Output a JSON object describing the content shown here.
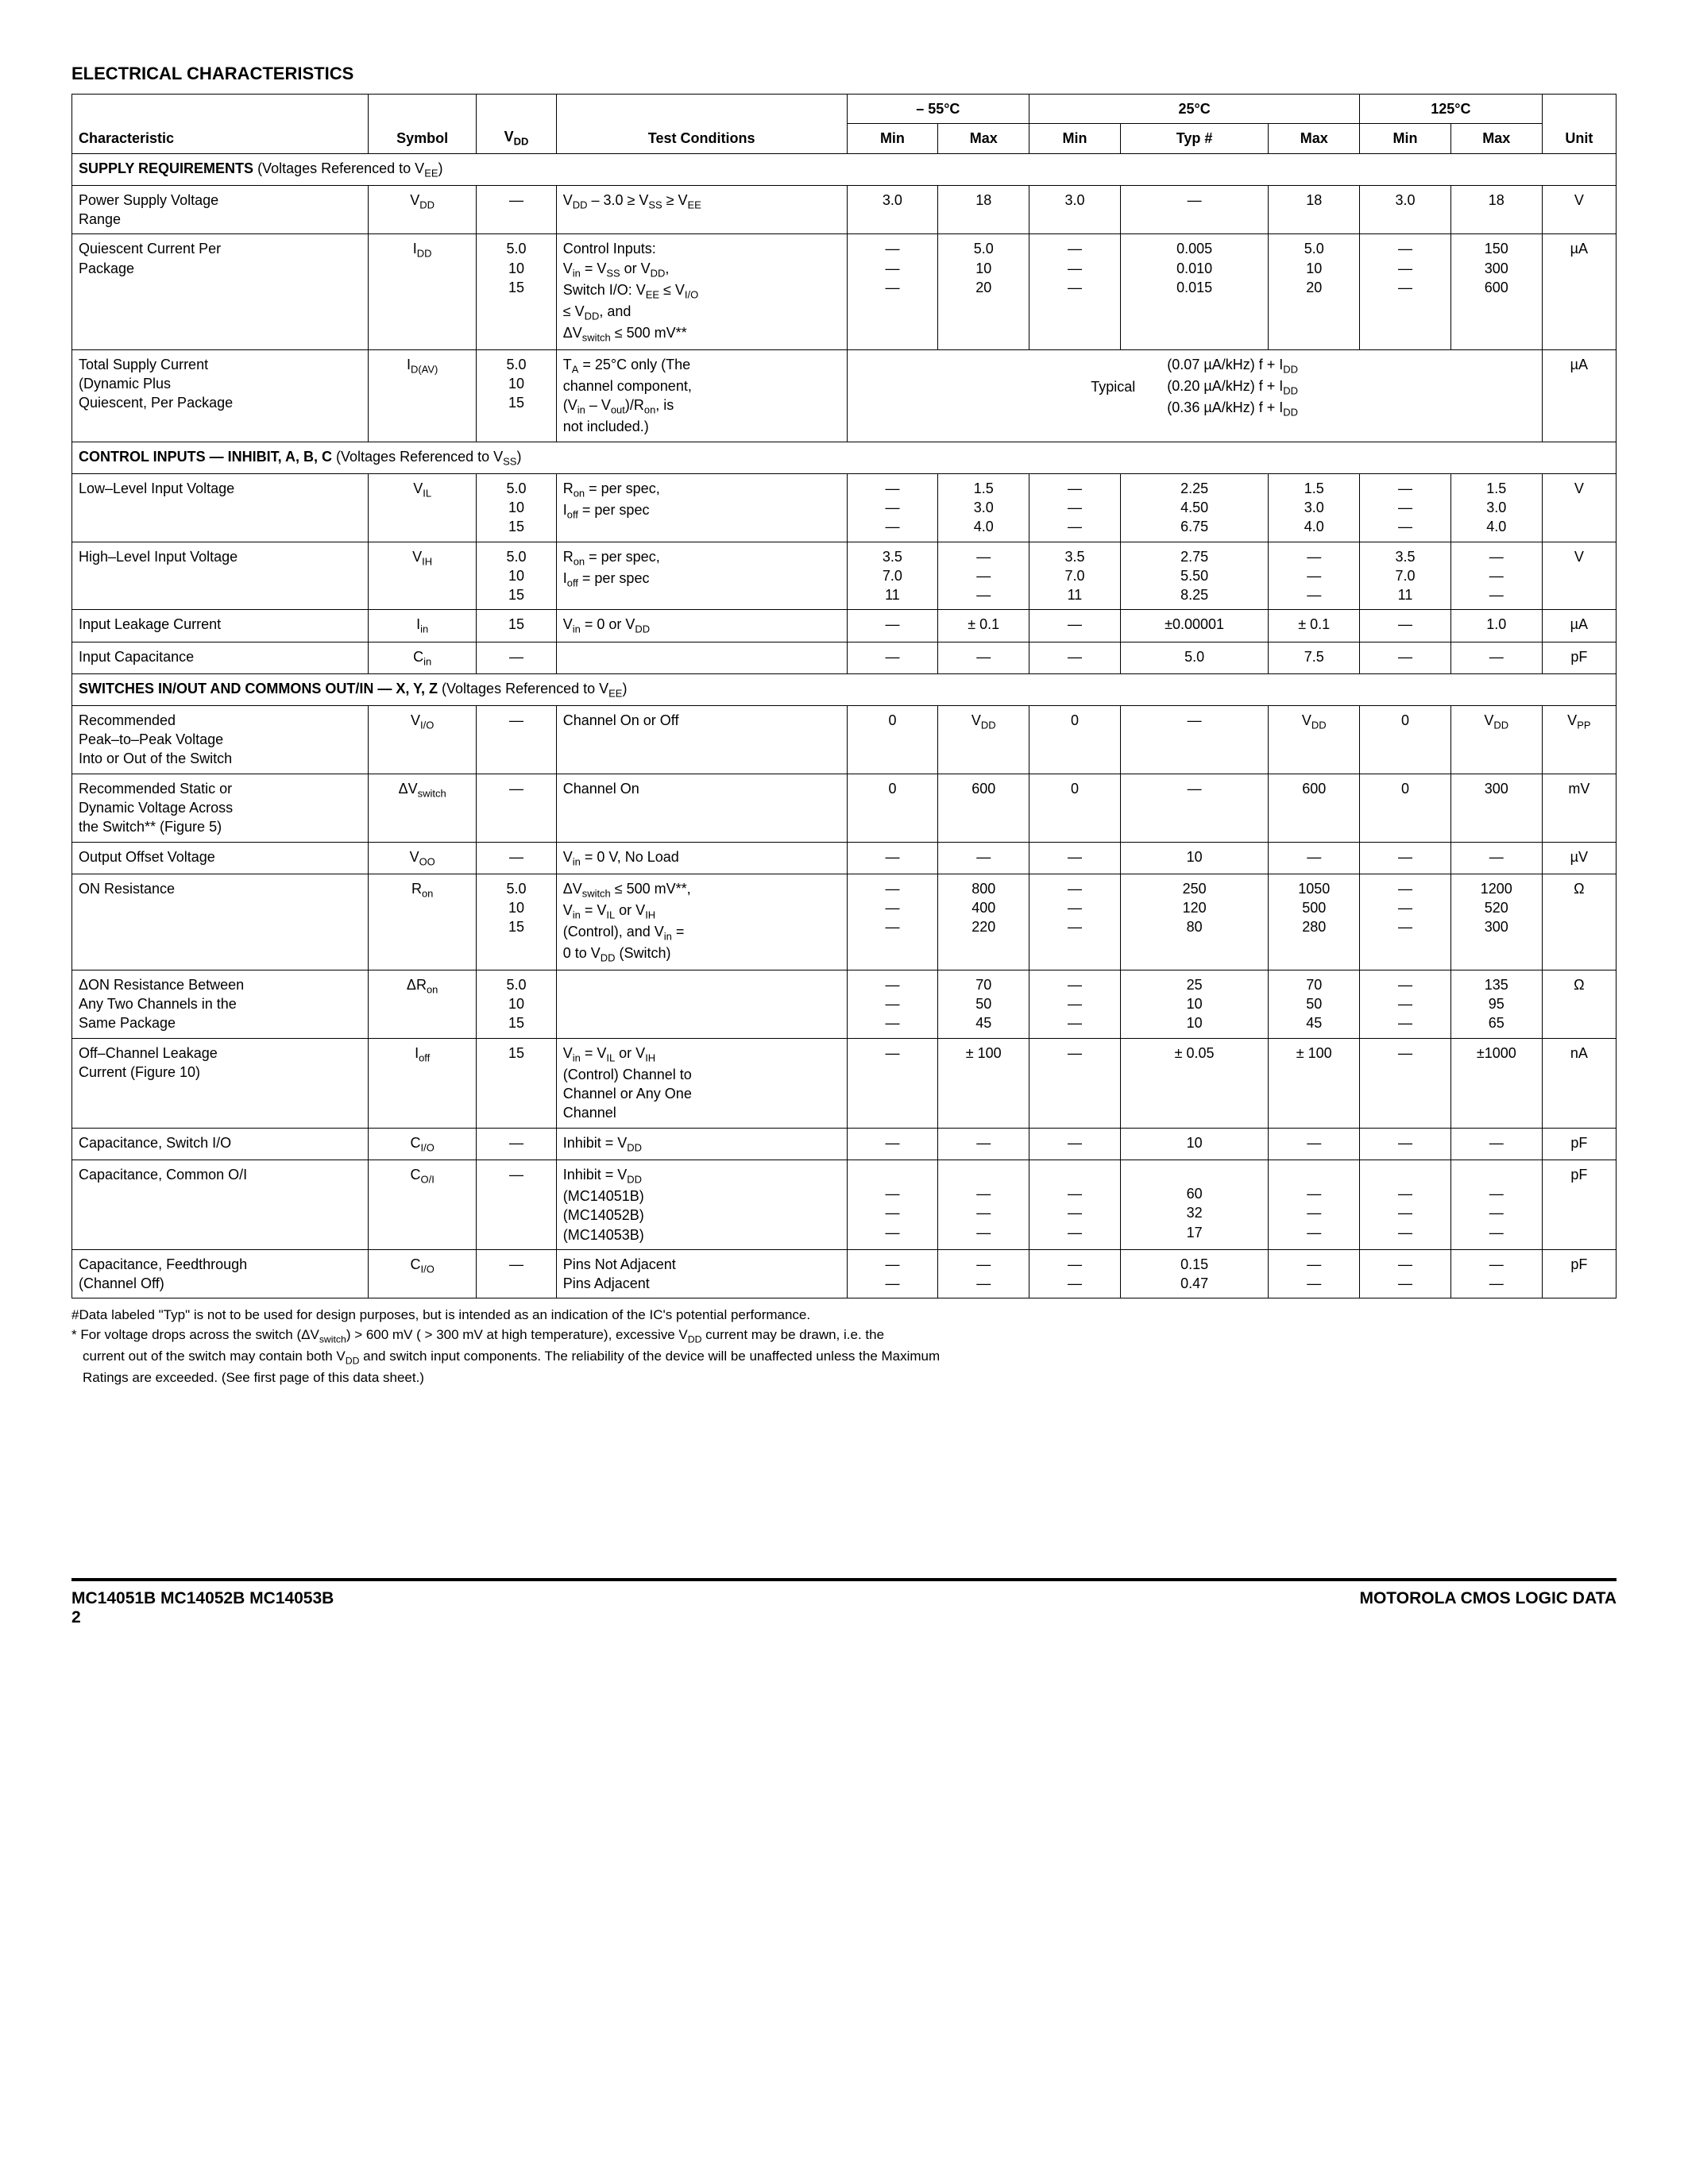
{
  "title": "ELECTRICAL CHARACTERISTICS",
  "temps": {
    "t1": "– 55°C",
    "t2": "25°C",
    "t3": "125°C"
  },
  "head": {
    "char": "Characteristic",
    "sym": "Symbol",
    "vdd": "V",
    "test": "Test Conditions",
    "min": "Min",
    "max": "Max",
    "typ": "Typ #",
    "unit": "Unit"
  },
  "sections": {
    "s1a": "SUPPLY REQUIREMENTS ",
    "s1b": "(Voltages Referenced to V",
    "s1c": ")",
    "s2a": "CONTROL INPUTS — INHIBIT, A, B, C ",
    "s2b": "(Voltages Referenced to V",
    "s2c": ")",
    "s3a": "SWITCHES IN/OUT AND COMMONS OUT/IN — X, Y, Z ",
    "s3b": "(Voltages Referenced to V",
    "s3c": ")"
  },
  "r_psv": {
    "char": "Power Supply Voltage\nRange",
    "sym": "V",
    "sub": "DD",
    "vdd": "—",
    "test": "V<sub>DD</sub> – 3.0 ≥ V<sub>SS</sub> ≥ V<sub>EE</sub>",
    "m55_min": "3.0",
    "m55_max": "18",
    "t25_min": "3.0",
    "t25_typ": "—",
    "t25_max": "18",
    "t125_min": "3.0",
    "t125_max": "18",
    "unit": "V"
  },
  "r_qc": {
    "char": "Quiescent Current Per\nPackage",
    "sym": "I",
    "sub": "DD",
    "vdd": "5.0\n10\n15",
    "test": "Control Inputs:\nV<sub>in</sub> = V<sub>SS</sub> or V<sub>DD</sub>,\nSwitch I/O: V<sub>EE</sub> ≤ V<sub>I/O</sub>\n≤ V<sub>DD</sub>, and\nΔV<sub>switch</sub> ≤ 500 mV**",
    "m55_min": "—\n—\n—",
    "m55_max": "5.0\n10\n20",
    "t25_min": "—\n—\n—",
    "t25_typ": "0.005\n0.010\n0.015",
    "t25_max": "5.0\n10\n20",
    "t125_min": "—\n—\n—",
    "t125_max": "150\n300\n600",
    "unit": "µA"
  },
  "r_tsc": {
    "char": "Total Supply Current\n(Dynamic Plus\nQuiescent, Per Package",
    "sym": "I",
    "sub": "D(AV)",
    "vdd": "5.0\n10\n15",
    "test": "T<sub>A</sub> = 25°C only (The\nchannel component,\n(V<sub>in</sub> – V<sub>out</sub>)/R<sub>on</sub>, is\nnot included.)",
    "typ_label": "Typical",
    "typ_body": "(0.07 µA/kHz) f + I<sub>DD</sub>\n(0.20 µA/kHz) f + I<sub>DD</sub>\n(0.36 µA/kHz) f + I<sub>DD</sub>",
    "unit": "µA"
  },
  "r_vil": {
    "char": "Low–Level Input Voltage",
    "sym": "V",
    "sub": "IL",
    "vdd": "5.0\n10\n15",
    "test": "R<sub>on</sub> = per spec,\nI<sub>off</sub> = per spec",
    "m55_min": "—\n—\n—",
    "m55_max": "1.5\n3.0\n4.0",
    "t25_min": "—\n—\n—",
    "t25_typ": "2.25\n4.50\n6.75",
    "t25_max": "1.5\n3.0\n4.0",
    "t125_min": "—\n—\n—",
    "t125_max": "1.5\n3.0\n4.0",
    "unit": "V"
  },
  "r_vih": {
    "char": "High–Level Input Voltage",
    "sym": "V",
    "sub": "IH",
    "vdd": "5.0\n10\n15",
    "test": "R<sub>on</sub> = per spec,\nI<sub>off</sub> = per spec",
    "m55_min": "3.5\n7.0\n11",
    "m55_max": "—\n—\n—",
    "t25_min": "3.5\n7.0\n11",
    "t25_typ": "2.75\n5.50\n8.25",
    "t25_max": "—\n—\n—",
    "t125_min": "3.5\n7.0\n11",
    "t125_max": "—\n—\n—",
    "unit": "V"
  },
  "r_iin": {
    "char": "Input Leakage Current",
    "sym": "I",
    "sub": "in",
    "vdd": "15",
    "test": "V<sub>in</sub> = 0 or V<sub>DD</sub>",
    "m55_min": "—",
    "m55_max": "± 0.1",
    "t25_min": "—",
    "t25_typ": "±0.00001",
    "t25_max": "± 0.1",
    "t125_min": "—",
    "t125_max": "1.0",
    "unit": "µA"
  },
  "r_cin": {
    "char": "Input Capacitance",
    "sym": "C",
    "sub": "in",
    "vdd": "—",
    "test": "",
    "m55_min": "—",
    "m55_max": "—",
    "t25_min": "—",
    "t25_typ": "5.0",
    "t25_max": "7.5",
    "t125_min": "—",
    "t125_max": "—",
    "unit": "pF"
  },
  "r_vio": {
    "char": "Recommended\nPeak–to–Peak Voltage\nInto or Out of the Switch",
    "sym": "V",
    "sub": "I/O",
    "vdd": "—",
    "test": "Channel On or Off",
    "m55_min": "0",
    "m55_max": "V<sub>DD</sub>",
    "t25_min": "0",
    "t25_typ": "—",
    "t25_max": "V<sub>DD</sub>",
    "t125_min": "0",
    "t125_max": "V<sub>DD</sub>",
    "unit": "V<sub>PP</sub>"
  },
  "r_dvs": {
    "char": "Recommended Static or\nDynamic Voltage Across\nthe Switch** (Figure 5)",
    "sym": "ΔV",
    "sub": "switch",
    "vdd": "—",
    "test": "Channel On",
    "m55_min": "0",
    "m55_max": "600",
    "t25_min": "0",
    "t25_typ": "—",
    "t25_max": "600",
    "t125_min": "0",
    "t125_max": "300",
    "unit": "mV"
  },
  "r_voo": {
    "char": "Output Offset Voltage",
    "sym": "V",
    "sub": "OO",
    "vdd": "—",
    "test": "V<sub>in</sub> = 0 V, No Load",
    "m55_min": "—",
    "m55_max": "—",
    "t25_min": "—",
    "t25_typ": "10",
    "t25_max": "—",
    "t125_min": "—",
    "t125_max": "—",
    "unit": "µV"
  },
  "r_ron": {
    "char": "ON Resistance",
    "sym": "R",
    "sub": "on",
    "vdd": "5.0\n10\n15",
    "test": "ΔV<sub>switch</sub> ≤ 500 mV**,\nV<sub>in</sub> = V<sub>IL</sub> or V<sub>IH</sub>\n(Control), and V<sub>in</sub> =\n0 to V<sub>DD</sub> (Switch)",
    "m55_min": "—\n—\n—",
    "m55_max": "800\n400\n220",
    "t25_min": "—\n—\n—",
    "t25_typ": "250\n120\n80",
    "t25_max": "1050\n500\n280",
    "t125_min": "—\n—\n—",
    "t125_max": "1200\n520\n300",
    "unit": "Ω"
  },
  "r_dron": {
    "char": "ΔON Resistance Between\nAny Two Channels in the\nSame Package",
    "sym": "ΔR",
    "sub": "on",
    "vdd": "5.0\n10\n15",
    "test": "",
    "m55_min": "—\n—\n—",
    "m55_max": "70\n50\n45",
    "t25_min": "—\n—\n—",
    "t25_typ": "25\n10\n10",
    "t25_max": "70\n50\n45",
    "t125_min": "—\n—\n—",
    "t125_max": "135\n95\n65",
    "unit": "Ω"
  },
  "r_ioff": {
    "char": "Off–Channel Leakage\nCurrent (Figure 10)",
    "sym": "I",
    "sub": "off",
    "vdd": "15",
    "test": "V<sub>in</sub> = V<sub>IL</sub> or V<sub>IH</sub>\n(Control) Channel to\nChannel or Any One\nChannel",
    "m55_min": "—",
    "m55_max": "± 100",
    "t25_min": "—",
    "t25_typ": "± 0.05",
    "t25_max": "± 100",
    "t125_min": "—",
    "t125_max": "±1000",
    "unit": "nA"
  },
  "r_cio": {
    "char": "Capacitance, Switch I/O",
    "sym": "C",
    "sub": "I/O",
    "vdd": "—",
    "test": "Inhibit = V<sub>DD</sub>",
    "m55_min": "—",
    "m55_max": "—",
    "t25_min": "—",
    "t25_typ": "10",
    "t25_max": "—",
    "t125_min": "—",
    "t125_max": "—",
    "unit": "pF"
  },
  "r_coi": {
    "char": "Capacitance, Common O/I",
    "sym": "C",
    "sub": "O/I",
    "vdd": "—",
    "test": "Inhibit = V<sub>DD</sub>\n(MC14051B)\n(MC14052B)\n(MC14053B)",
    "m55_min": "\n—\n—\n—",
    "m55_max": "\n—\n—\n—",
    "t25_min": "\n—\n—\n—",
    "t25_typ": "\n60\n32\n17",
    "t25_max": "\n—\n—\n—",
    "t125_min": "\n—\n—\n—",
    "t125_max": "\n—\n—\n—",
    "unit": "pF"
  },
  "r_cft": {
    "char": "Capacitance, Feedthrough\n(Channel Off)",
    "sym": "C",
    "sub": "I/O",
    "vdd": "—",
    "test": "Pins Not Adjacent\nPins Adjacent",
    "m55_min": "—\n—",
    "m55_max": "—\n—",
    "t25_min": "—\n—",
    "t25_typ": "0.15\n0.47",
    "t25_max": "—\n—",
    "t125_min": "—\n—",
    "t125_max": "—\n—",
    "unit": "pF"
  },
  "notes": {
    "n1": "#Data labeled \"Typ\" is not to be used for design purposes, but is intended as an indication of the IC's potential performance.",
    "n2a": "* For voltage drops across the switch (ΔV",
    "n2b": ") > 600 mV ( > 300 mV at high temperature), excessive V",
    "n2c": " current may be drawn, i.e. the",
    "n2d": "current out of the switch may contain both V",
    "n2e": " and switch input components. The reliability of the device will be unaffected unless the Maximum",
    "n2f": "Ratings are exceeded. (See first page of this data sheet.)"
  },
  "footer": {
    "left": "MC14051B MC14052B MC14053B",
    "page": "2",
    "right": "MOTOROLA CMOS LOGIC DATA"
  }
}
